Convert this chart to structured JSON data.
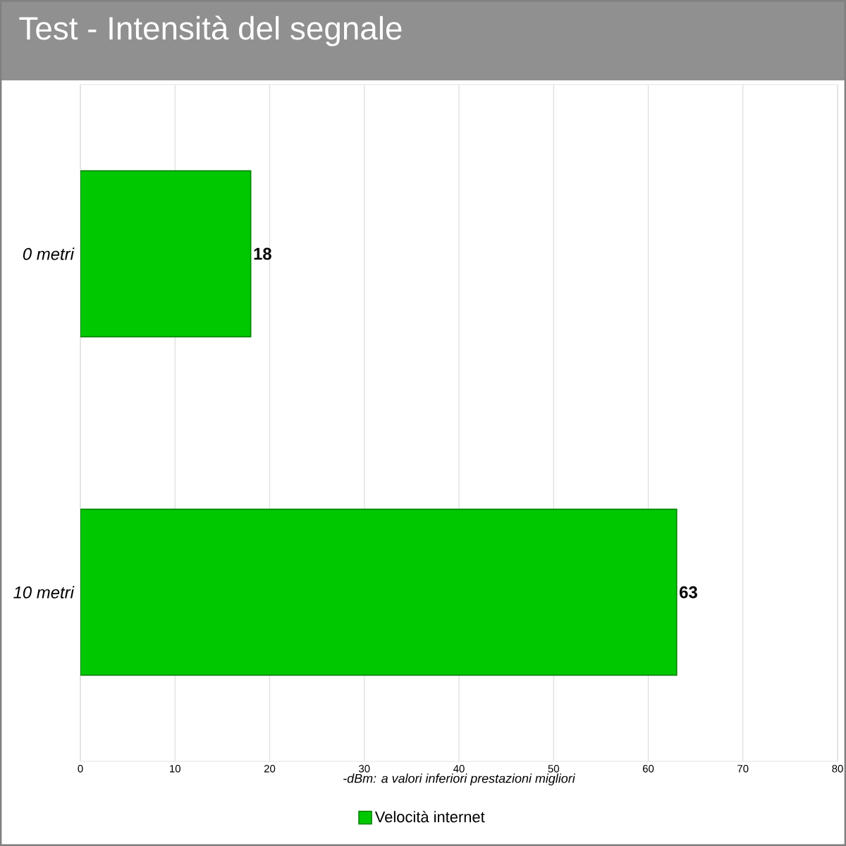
{
  "chart_data": {
    "type": "bar",
    "title": "Test - Intensità del segnale",
    "xlabel": "-dBm: a valori inferiori prestazioni migliori",
    "categories": [
      "0 metri",
      "10 metri"
    ],
    "series": [
      {
        "name": "Velocità internet",
        "color": "#00c800",
        "values": [
          18,
          63
        ]
      }
    ],
    "orientation": "horizontal",
    "xlim": [
      0,
      80
    ],
    "xticks": [
      0,
      10,
      20,
      30,
      40,
      50,
      60,
      70,
      80
    ],
    "grid": "x",
    "legend": "bottom",
    "data_labels": true
  }
}
